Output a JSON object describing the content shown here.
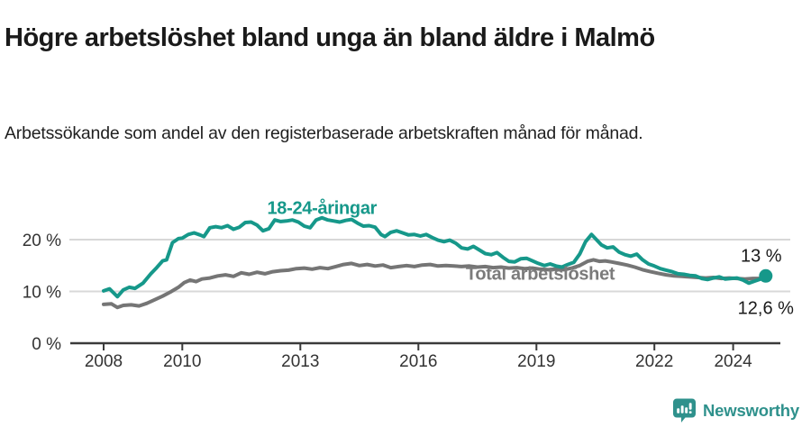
{
  "header": {
    "title": "Högre arbetslöshet bland unga än bland äldre i Malmö",
    "subtitle": "Arbetssökande som andel av den registerbaserade arbetskraften månad för månad."
  },
  "colors": {
    "young": "#16988a",
    "total": "#757575",
    "total_label": "#7b7b7b",
    "grid": "#d8d8d8",
    "axis": "#3a3a3a",
    "tick_text": "#333333",
    "end_label_text": "#1a1a1a",
    "logo": "#2f918c"
  },
  "footer": {
    "brand": "Newsworthy"
  },
  "chart_data": {
    "type": "line",
    "title": "Högre arbetslöshet bland unga än bland äldre i Malmö",
    "subtitle": "Arbetssökande som andel av den registerbaserade arbetskraften månad för månad.",
    "xlabel": "",
    "ylabel": "",
    "xlim": [
      2007.4,
      2025.4
    ],
    "ylim": [
      0,
      31.5
    ],
    "grid": "horizontal",
    "legend_position": "inline-labels",
    "x_ticks": [
      2008,
      2010,
      2013,
      2016,
      2019,
      2022,
      2024
    ],
    "x_tick_labels": [
      "2008",
      "2010",
      "2013",
      "2016",
      "2019",
      "2022",
      "2024"
    ],
    "y_ticks": [
      0,
      10,
      20
    ],
    "y_tick_labels": [
      "0 %",
      "10 %",
      "20 %"
    ],
    "series": [
      {
        "name": "Total arbetslöshet",
        "label_anchor": {
          "x": 2019.1,
          "y": 13.5
        },
        "end_label": "12,6 %",
        "end_dot": false,
        "x": [
          2008.0,
          2008.2,
          2008.35,
          2008.5,
          2008.7,
          2008.9,
          2009.1,
          2009.3,
          2009.5,
          2009.7,
          2009.9,
          2010.05,
          2010.2,
          2010.35,
          2010.5,
          2010.7,
          2010.9,
          2011.1,
          2011.3,
          2011.5,
          2011.7,
          2011.9,
          2012.1,
          2012.3,
          2012.5,
          2012.7,
          2012.9,
          2013.1,
          2013.3,
          2013.5,
          2013.7,
          2013.9,
          2014.1,
          2014.3,
          2014.5,
          2014.7,
          2014.9,
          2015.1,
          2015.3,
          2015.5,
          2015.7,
          2015.9,
          2016.1,
          2016.3,
          2016.5,
          2016.7,
          2016.9,
          2017.1,
          2017.3,
          2017.5,
          2017.7,
          2017.9,
          2018.1,
          2018.3,
          2018.5,
          2018.7,
          2018.9,
          2019.1,
          2019.3,
          2019.5,
          2019.7,
          2019.9,
          2020.1,
          2020.3,
          2020.45,
          2020.6,
          2020.75,
          2020.9,
          2021.1,
          2021.3,
          2021.5,
          2021.7,
          2021.9,
          2022.1,
          2022.3,
          2022.5,
          2022.7,
          2022.9,
          2023.1,
          2023.3,
          2023.5,
          2023.7,
          2023.9,
          2024.1,
          2024.3,
          2024.5,
          2024.7,
          2024.83
        ],
        "values": [
          7.5,
          7.6,
          6.9,
          7.3,
          7.4,
          7.2,
          7.7,
          8.4,
          9.1,
          9.9,
          10.8,
          11.7,
          12.2,
          11.9,
          12.4,
          12.6,
          13.0,
          13.2,
          12.9,
          13.6,
          13.3,
          13.7,
          13.4,
          13.8,
          14.0,
          14.1,
          14.4,
          14.5,
          14.3,
          14.6,
          14.4,
          14.8,
          15.2,
          15.4,
          15.0,
          15.2,
          14.9,
          15.1,
          14.6,
          14.8,
          15.0,
          14.8,
          15.1,
          15.2,
          14.9,
          15.0,
          14.9,
          14.8,
          14.9,
          14.7,
          14.8,
          14.6,
          14.7,
          14.5,
          14.6,
          14.4,
          14.5,
          14.3,
          14.2,
          14.3,
          14.2,
          14.5,
          15.0,
          15.8,
          16.1,
          15.8,
          15.9,
          15.7,
          15.4,
          15.1,
          14.7,
          14.2,
          13.8,
          13.5,
          13.2,
          13.0,
          12.9,
          12.8,
          12.7,
          12.6,
          12.7,
          12.5,
          12.6,
          12.5,
          12.4,
          12.5,
          12.5,
          12.6
        ]
      },
      {
        "name": "18-24-åringar",
        "label_anchor": {
          "x": 2013.55,
          "y": 26.2
        },
        "end_label": "13 %",
        "end_dot": true,
        "x": [
          2008.0,
          2008.15,
          2008.35,
          2008.5,
          2008.65,
          2008.8,
          2009.0,
          2009.2,
          2009.35,
          2009.5,
          2009.6,
          2009.75,
          2009.9,
          2010.0,
          2010.15,
          2010.3,
          2010.45,
          2010.55,
          2010.7,
          2010.85,
          2011.0,
          2011.15,
          2011.3,
          2011.45,
          2011.6,
          2011.75,
          2011.9,
          2012.05,
          2012.2,
          2012.35,
          2012.5,
          2012.65,
          2012.8,
          2012.95,
          2013.1,
          2013.25,
          2013.4,
          2013.55,
          2013.7,
          2013.85,
          2014.0,
          2014.15,
          2014.3,
          2014.45,
          2014.6,
          2014.75,
          2014.9,
          2015.05,
          2015.15,
          2015.3,
          2015.45,
          2015.6,
          2015.75,
          2015.9,
          2016.05,
          2016.2,
          2016.35,
          2016.5,
          2016.65,
          2016.8,
          2016.95,
          2017.1,
          2017.25,
          2017.4,
          2017.55,
          2017.7,
          2017.85,
          2018.0,
          2018.15,
          2018.3,
          2018.45,
          2018.6,
          2018.75,
          2018.9,
          2019.05,
          2019.2,
          2019.35,
          2019.5,
          2019.65,
          2019.8,
          2019.95,
          2020.1,
          2020.25,
          2020.4,
          2020.5,
          2020.65,
          2020.8,
          2020.95,
          2021.1,
          2021.25,
          2021.4,
          2021.55,
          2021.7,
          2021.85,
          2022.0,
          2022.15,
          2022.3,
          2022.45,
          2022.6,
          2022.75,
          2022.9,
          2023.05,
          2023.2,
          2023.35,
          2023.5,
          2023.65,
          2023.8,
          2023.95,
          2024.1,
          2024.25,
          2024.4,
          2024.55,
          2024.7,
          2024.83
        ],
        "values": [
          10.1,
          10.5,
          9.0,
          10.3,
          10.8,
          10.6,
          11.6,
          13.4,
          14.6,
          15.9,
          16.1,
          19.4,
          20.2,
          20.3,
          21.0,
          21.3,
          20.9,
          20.6,
          22.3,
          22.5,
          22.3,
          22.7,
          22.0,
          22.4,
          23.3,
          23.4,
          22.8,
          21.7,
          22.1,
          23.8,
          23.5,
          23.6,
          23.8,
          23.4,
          22.6,
          22.3,
          23.8,
          24.2,
          23.8,
          23.6,
          23.4,
          23.7,
          23.9,
          23.2,
          22.6,
          22.7,
          22.4,
          21.0,
          20.6,
          21.4,
          21.7,
          21.3,
          20.9,
          21.0,
          20.7,
          21.0,
          20.4,
          19.9,
          19.6,
          19.9,
          19.3,
          18.4,
          18.2,
          18.7,
          18.0,
          17.3,
          17.1,
          17.5,
          16.6,
          15.8,
          15.7,
          16.3,
          16.4,
          15.9,
          15.4,
          15.0,
          15.3,
          14.9,
          14.7,
          15.2,
          15.6,
          17.2,
          19.6,
          21.0,
          20.2,
          19.0,
          18.4,
          18.6,
          17.6,
          17.1,
          16.8,
          17.2,
          16.1,
          15.3,
          14.9,
          14.4,
          14.1,
          13.8,
          13.4,
          13.3,
          13.1,
          13.0,
          12.5,
          12.3,
          12.6,
          12.8,
          12.4,
          12.5,
          12.6,
          12.2,
          11.6,
          12.0,
          12.4,
          13.0
        ]
      }
    ]
  }
}
